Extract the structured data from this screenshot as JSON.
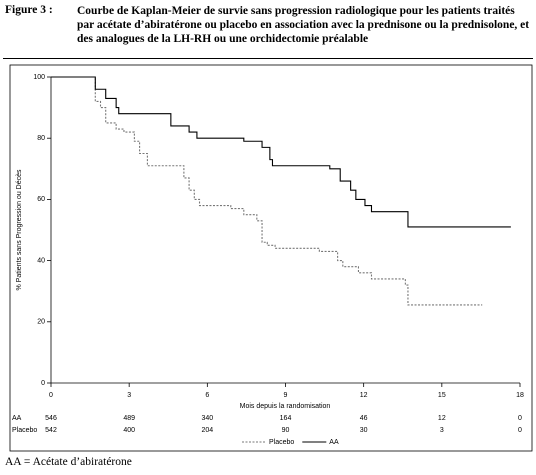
{
  "chart_data": {
    "type": "line",
    "step": "post",
    "figure_label": "Figure 3 :",
    "title": "Courbe de Kaplan-Meier de survie sans progression radiologique pour les patients traités par acétate d’abiratérone ou placebo en association avec la prednisone ou la prednisolone, et des analogues de la LH-RH ou une orchidectomie préalable",
    "xlabel": "Mois depuis la randomisation",
    "ylabel": "% Patients sans Progression ou Décès",
    "xlim": [
      0,
      18
    ],
    "xticks": [
      0,
      3,
      6,
      9,
      12,
      15,
      18
    ],
    "ylim": [
      0,
      100
    ],
    "yticks": [
      0,
      20,
      40,
      60,
      80,
      100
    ],
    "series": [
      {
        "name": "Placebo",
        "color": "#777777",
        "style": "dashed",
        "x": [
          0,
          1.7,
          1.9,
          2.1,
          2.5,
          2.8,
          3.2,
          3.4,
          3.7,
          5.1,
          5.3,
          5.5,
          5.7,
          6.9,
          7.4,
          7.9,
          8.1,
          8.3,
          8.6,
          10.3,
          11.0,
          11.2,
          11.8,
          12.3,
          13.6,
          13.7,
          16.55
        ],
        "values": [
          100,
          92,
          90,
          85,
          83,
          82,
          79,
          75,
          71,
          67,
          63,
          60,
          58,
          57,
          55,
          53,
          46,
          45,
          44,
          43,
          40,
          38,
          36,
          34,
          32,
          25.5,
          25.5
        ]
      },
      {
        "name": "AA",
        "color": "#000000",
        "style": "solid",
        "x": [
          0,
          1.7,
          2.1,
          2.5,
          2.6,
          4.6,
          5.3,
          5.6,
          7.4,
          8.1,
          8.4,
          8.5,
          10.7,
          11.1,
          11.5,
          11.7,
          12.05,
          12.3,
          13.7,
          17.65
        ],
        "values": [
          100,
          96,
          93,
          90,
          88,
          84,
          82,
          80,
          79,
          77,
          73,
          71,
          70,
          66,
          63,
          60,
          58,
          56,
          51,
          51
        ]
      }
    ],
    "risk_table": [
      {
        "name": "AA",
        "values": [
          546,
          489,
          340,
          164,
          46,
          12,
          0
        ]
      },
      {
        "name": "Placebo",
        "values": [
          542,
          400,
          204,
          90,
          30,
          3,
          0
        ]
      }
    ],
    "footnote": "AA = Acétate d’abiratérone"
  }
}
